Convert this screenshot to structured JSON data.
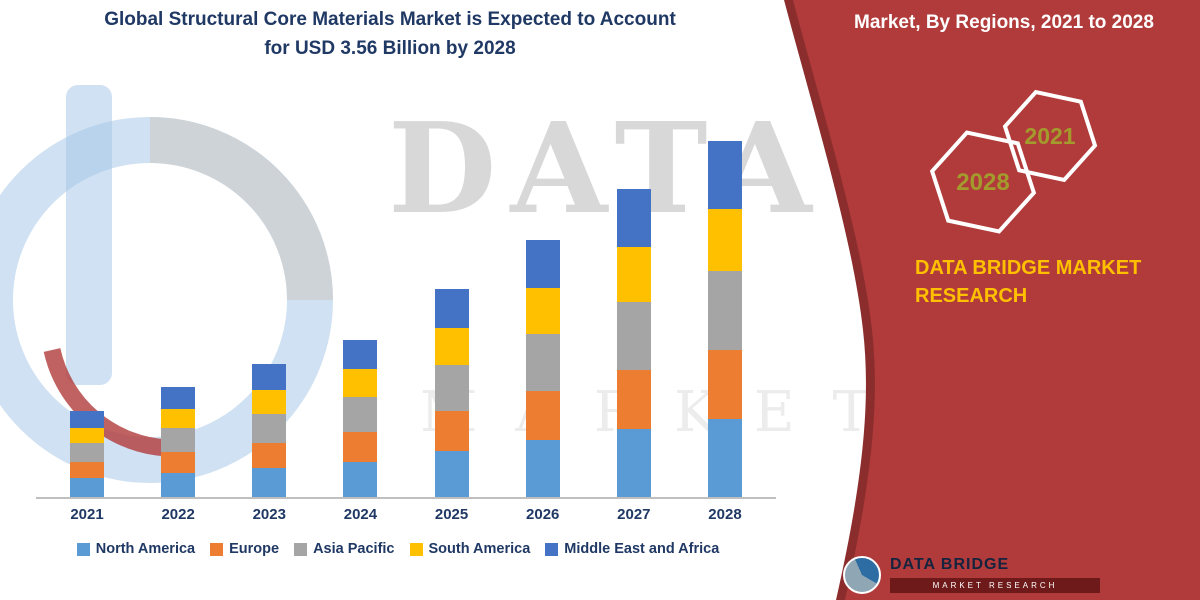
{
  "page": {
    "title_line1": "Global Structural Core Materials Market is Expected to Account",
    "title_line2": "for USD 3.56 Billion by 2028"
  },
  "banner": {
    "heading": "Market, By Regions, 2021 to 2028",
    "hexagon_years": [
      "2028",
      "2021"
    ],
    "brand_line1": "DATA BRIDGE MARKET",
    "brand_line2": "RESEARCH"
  },
  "watermark": {
    "line1": "DATA BRI",
    "line2": "MARKET RE"
  },
  "footer_logo": {
    "title": "DATA BRIDGE",
    "subtitle": "MARKET RESEARCH"
  },
  "colors": {
    "accent_red": "#B13B3B",
    "accent_red_dark": "#8C2D2D",
    "navy": "#1F3864",
    "gold": "#FFC000",
    "hexagon_year_text": "#A49B2D"
  },
  "chart_data": {
    "type": "bar",
    "stacked": true,
    "title": "Global Structural Core Materials Market is Expected to Account for USD 3.56 Billion by 2028",
    "unit": "USD Billion",
    "categories": [
      "2021",
      "2022",
      "2023",
      "2024",
      "2025",
      "2026",
      "2027",
      "2028"
    ],
    "series": [
      {
        "name": "North America",
        "color": "#5B9BD5",
        "values": [
          0.19,
          0.24,
          0.29,
          0.35,
          0.46,
          0.57,
          0.68,
          0.78
        ]
      },
      {
        "name": "Europe",
        "color": "#ED7D31",
        "values": [
          0.16,
          0.21,
          0.25,
          0.3,
          0.4,
          0.49,
          0.59,
          0.69
        ]
      },
      {
        "name": "Asia Pacific",
        "color": "#A5A5A5",
        "values": [
          0.19,
          0.24,
          0.29,
          0.35,
          0.46,
          0.57,
          0.68,
          0.79
        ]
      },
      {
        "name": "South America",
        "color": "#FFC000",
        "values": [
          0.15,
          0.19,
          0.24,
          0.28,
          0.37,
          0.46,
          0.55,
          0.62
        ]
      },
      {
        "name": "Middle East and Africa",
        "color": "#4472C4",
        "values": [
          0.17,
          0.22,
          0.26,
          0.29,
          0.39,
          0.48,
          0.58,
          0.68
        ]
      }
    ],
    "totals": [
      0.86,
      1.1,
      1.33,
      1.57,
      2.08,
      2.57,
      3.08,
      3.56
    ],
    "ylim": [
      0,
      3.6
    ],
    "grid": false,
    "legend_position": "bottom",
    "y_axis_visible": false
  }
}
